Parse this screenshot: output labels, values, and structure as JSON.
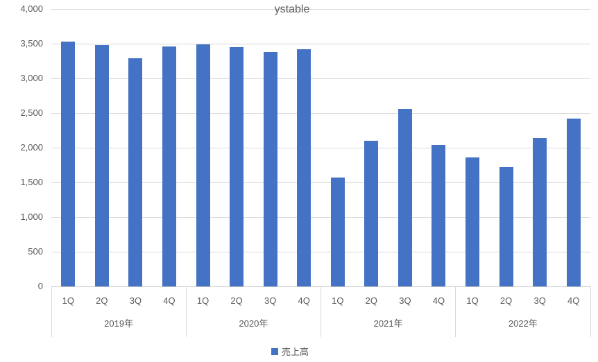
{
  "chart_data": {
    "type": "bar",
    "title": "ystable",
    "legend": "売上高",
    "legend_position": "bottom",
    "grid": true,
    "bar_color": "#4472C4",
    "gridline_color": "#D9D9D9",
    "text_color": "#595959",
    "ylim": [
      0,
      4000
    ],
    "ytick_interval": 500,
    "ytick_labels": [
      "0",
      "500",
      "1,000",
      "1,500",
      "2,000",
      "2,500",
      "3,000",
      "3,500",
      "4,000"
    ],
    "categories": [
      "1Q",
      "2Q",
      "3Q",
      "4Q",
      "1Q",
      "2Q",
      "3Q",
      "4Q",
      "1Q",
      "2Q",
      "3Q",
      "4Q",
      "1Q",
      "2Q",
      "3Q",
      "4Q"
    ],
    "groups": [
      {
        "year": "2019年",
        "quarters": [
          "1Q",
          "2Q",
          "3Q",
          "4Q"
        ],
        "values": [
          3530,
          3480,
          3290,
          3460
        ]
      },
      {
        "year": "2020年",
        "quarters": [
          "1Q",
          "2Q",
          "3Q",
          "4Q"
        ],
        "values": [
          3490,
          3450,
          3380,
          3420
        ]
      },
      {
        "year": "2021年",
        "quarters": [
          "1Q",
          "2Q",
          "3Q",
          "4Q"
        ],
        "values": [
          1570,
          2100,
          2560,
          2040
        ]
      },
      {
        "year": "2022年",
        "quarters": [
          "1Q",
          "2Q",
          "3Q",
          "4Q"
        ],
        "values": [
          1860,
          1720,
          2140,
          2420
        ]
      }
    ],
    "series": [
      {
        "name": "売上高",
        "values": [
          3530,
          3480,
          3290,
          3460,
          3490,
          3450,
          3380,
          3420,
          1570,
          2100,
          2560,
          2040,
          1860,
          1720,
          2140,
          2420
        ]
      }
    ]
  }
}
